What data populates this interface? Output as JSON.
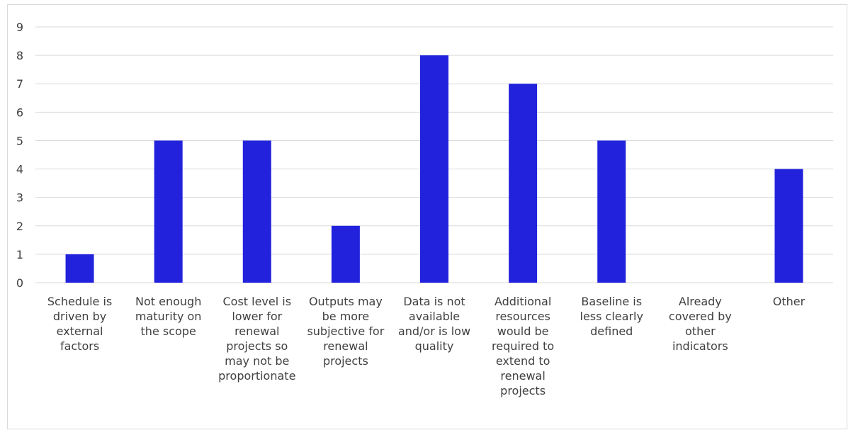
{
  "chart_data": {
    "type": "bar",
    "categories": [
      "Schedule is driven by external factors",
      "Not enough maturity on the scope",
      "Cost level is lower for renewal projects so may not be proportionate",
      "Outputs may be more subjective for renewal projects",
      "Data is not available and/or is low quality",
      "Additional resources would be required to extend to renewal projects",
      "Baseline is less clearly defined",
      "Already covered by other indicators",
      "Other"
    ],
    "category_lines": [
      [
        "Schedule is",
        "driven by",
        "external",
        "factors"
      ],
      [
        "Not enough",
        "maturity on",
        "the scope"
      ],
      [
        "Cost level is",
        "lower for",
        "renewal",
        "projects so",
        "may not be",
        "proportionate"
      ],
      [
        "Outputs may",
        "be more",
        "subjective for",
        "renewal",
        "projects"
      ],
      [
        "Data is not",
        "available",
        "and/or is low",
        "quality"
      ],
      [
        "Additional",
        "resources",
        "would be",
        "required to",
        "extend to",
        "renewal",
        "projects"
      ],
      [
        "Baseline is",
        "less clearly",
        "defined"
      ],
      [
        "Already",
        "covered by",
        "other",
        "indicators"
      ],
      [
        "Other"
      ]
    ],
    "values": [
      1,
      5,
      5,
      2,
      8,
      7,
      5,
      0,
      4
    ],
    "ylim": [
      0,
      9
    ],
    "yticks": [
      "0",
      "1",
      "2",
      "3",
      "4",
      "5",
      "6",
      "7",
      "8",
      "9"
    ],
    "title": "",
    "xlabel": "",
    "ylabel": "",
    "grid": true,
    "legend": "none",
    "bar_color": "#2222dd",
    "grid_color": "#d9d9d9"
  }
}
